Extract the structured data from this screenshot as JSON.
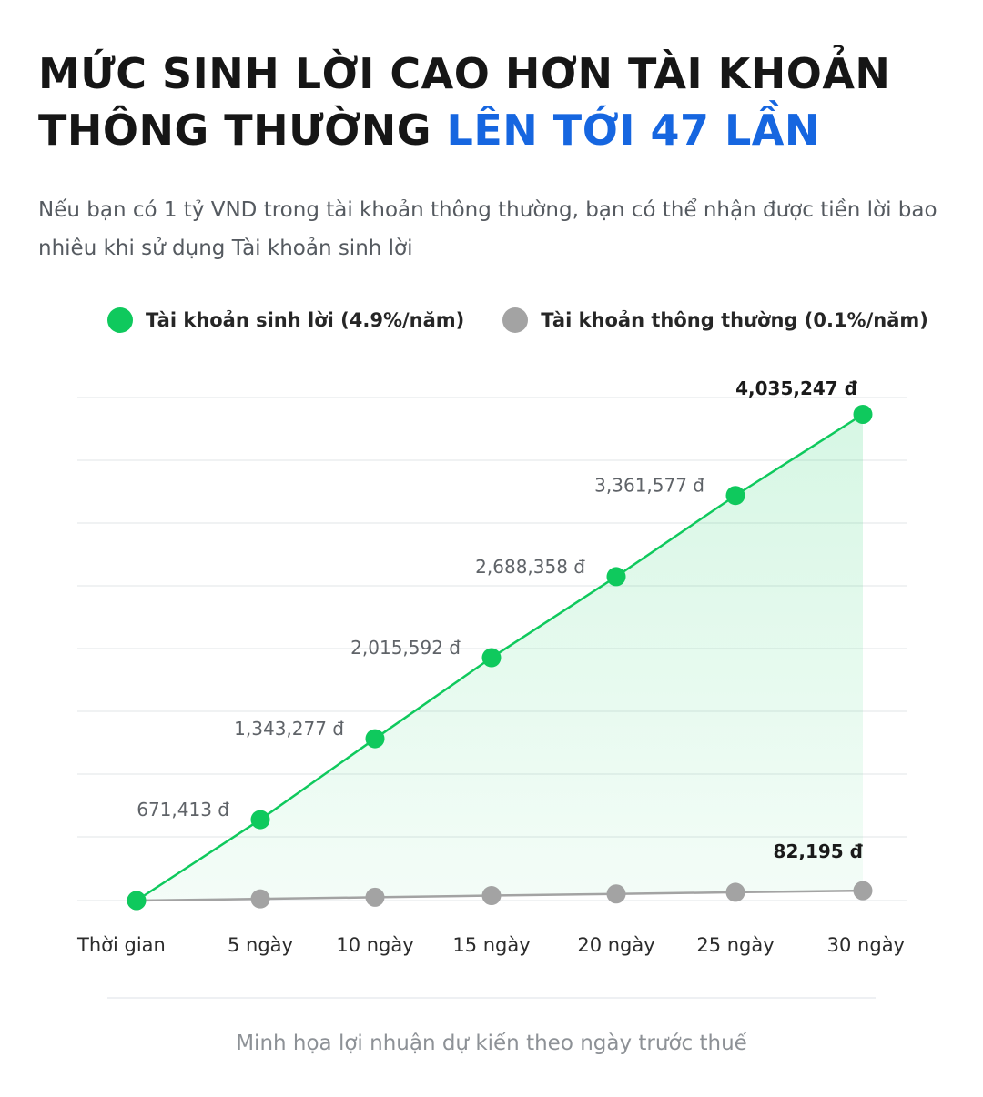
{
  "header": {
    "title_main": "MỨC SINH LỜI CAO HƠN TÀI KHOẢN THÔNG THƯỜNG",
    "title_highlight": "LÊN TỚI 47 LẦN",
    "subtitle": "Nếu bạn có 1 tỷ VND trong tài khoản thông thường, bạn có thể nhận được tiền lời bao nhiêu khi sử dụng Tài khoản sinh lời"
  },
  "colors": {
    "highlight": "#1666e0",
    "green": "#0fc95d",
    "gray": "#a3a3a3",
    "grid": "#e7e9ec"
  },
  "legend": [
    {
      "label": "Tài khoản sinh lời (4.9%/năm)",
      "color": "#0fc95d"
    },
    {
      "label": "Tài khoản thông thường (0.1%/năm)",
      "color": "#a3a3a3"
    }
  ],
  "chart_data": {
    "type": "area",
    "categories": [
      "Thời gian",
      "5 ngày",
      "10 ngày",
      "15 ngày",
      "20 ngày",
      "25 ngày",
      "30 ngày"
    ],
    "series": [
      {
        "name": "Tài khoản sinh lời (4.9%/năm)",
        "color": "#0fc95d",
        "values": [
          0,
          671413,
          1343277,
          2015592,
          2688358,
          3361577,
          4035247
        ],
        "labels": [
          "",
          "671,413 đ",
          "1,343,277 đ",
          "2,015,592 đ",
          "2,688,358 đ",
          "3,361,577 đ",
          "4,035,247 đ"
        ]
      },
      {
        "name": "Tài khoản thông thường (0.1%/năm)",
        "color": "#a3a3a3",
        "values": [
          0,
          13699,
          27398,
          41097,
          54796,
          68495,
          82195
        ],
        "labels": [
          "",
          "",
          "",
          "",
          "",
          "",
          "82,195 đ"
        ]
      }
    ],
    "ylim": [
      0,
      4200000
    ],
    "grid": true,
    "legend_position": "top"
  },
  "caption": "Minh họa lợi nhuận dự kiến theo ngày trước thuế"
}
